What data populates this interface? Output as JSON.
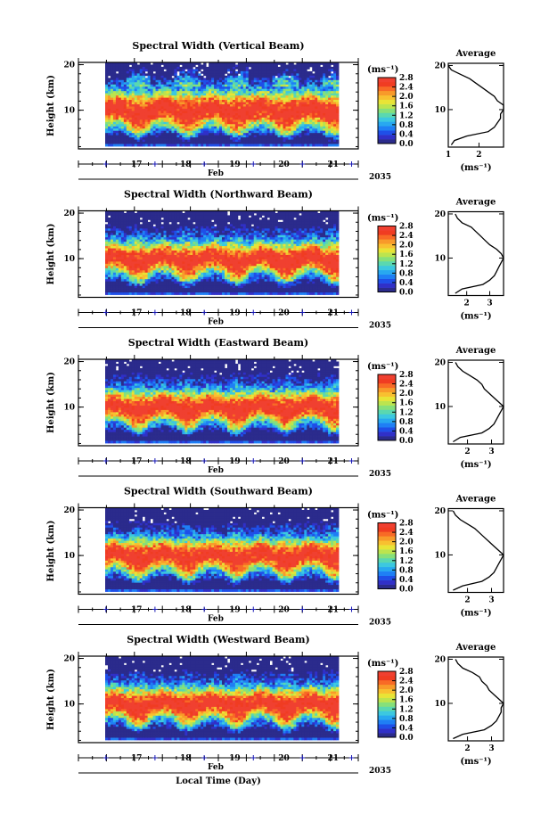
{
  "figure": {
    "shared_xlabel": "Local Time (Day)",
    "month_label": "Feb",
    "year_label": "2035",
    "colorbar_unit": "(ms⁻¹)",
    "avg_title": "Average",
    "avg_xlabel": "(ms⁻¹)",
    "ylabel": "Height (km)"
  },
  "colors": {
    "scale": [
      "#2b2b8c",
      "#3030c8",
      "#1f4fe8",
      "#1f7ff5",
      "#28a8f0",
      "#3cc8e0",
      "#5ad8b0",
      "#86e07a",
      "#bce44e",
      "#e8e436",
      "#f8c030",
      "#f89a2a",
      "#f86a26",
      "#f03c22",
      "#f04030"
    ],
    "frame": "#000000",
    "dates_tick": "#1a1ab4"
  },
  "chart_data": [
    {
      "type": "heatmap",
      "title": "Spectral Width (Vertical Beam)",
      "xlabel": "Local Time (Day)",
      "ylabel": "Height (km)",
      "x_ticks": [
        "17",
        "18",
        "19",
        "20",
        "21"
      ],
      "x_sub": "Feb",
      "x_year": "2035",
      "y_ticks": [
        "10",
        "20"
      ],
      "ylim": [
        1.5,
        20.5
      ],
      "xlim": [
        16.5,
        21.35
      ],
      "colorbar": {
        "label": "(ms⁻¹)",
        "ticks": [
          "0.0",
          "0.4",
          "0.8",
          "1.2",
          "1.6",
          "2.0",
          "2.4",
          "2.8"
        ],
        "range": [
          0.0,
          2.8
        ]
      },
      "average": {
        "title": "Average",
        "xlabel": "(ms⁻¹)",
        "x_ticks": [
          "1",
          "2"
        ],
        "xlim": [
          1.0,
          2.8
        ],
        "heights": [
          2,
          3,
          4,
          5,
          6,
          7,
          8,
          9,
          10,
          11,
          12,
          13,
          14,
          15,
          16,
          17,
          18,
          19,
          20
        ],
        "values": [
          1.1,
          1.2,
          1.6,
          2.3,
          2.5,
          2.6,
          2.7,
          2.7,
          2.8,
          2.8,
          2.6,
          2.5,
          2.3,
          2.1,
          1.9,
          1.7,
          1.4,
          1.1,
          1.0
        ]
      }
    },
    {
      "type": "heatmap",
      "title": "Spectral Width (Northward Beam)",
      "xlabel": "Local Time (Day)",
      "ylabel": "Height (km)",
      "x_ticks": [
        "17",
        "18",
        "19",
        "20",
        "21"
      ],
      "x_sub": "Feb",
      "x_year": "2035",
      "y_ticks": [
        "10",
        "20"
      ],
      "ylim": [
        1.5,
        20.5
      ],
      "xlim": [
        16.5,
        21.35
      ],
      "colorbar": {
        "label": "(ms⁻¹)",
        "ticks": [
          "0.0",
          "0.4",
          "0.8",
          "1.2",
          "1.6",
          "2.0",
          "2.4",
          "2.8"
        ],
        "range": [
          0.0,
          2.8
        ]
      },
      "average": {
        "title": "Average",
        "xlabel": "(ms⁻¹)",
        "x_ticks": [
          "2",
          "3"
        ],
        "xlim": [
          1.2,
          3.6
        ],
        "heights": [
          2,
          3,
          4,
          5,
          6,
          7,
          8,
          9,
          10,
          11,
          12,
          13,
          14,
          15,
          16,
          17,
          18,
          19,
          20
        ],
        "values": [
          1.5,
          1.8,
          2.7,
          3.0,
          3.2,
          3.3,
          3.4,
          3.5,
          3.6,
          3.5,
          3.3,
          3.0,
          2.8,
          2.6,
          2.4,
          2.2,
          1.8,
          1.6,
          1.5
        ]
      }
    },
    {
      "type": "heatmap",
      "title": "Spectral Width (Eastward Beam)",
      "xlabel": "Local Time (Day)",
      "ylabel": "Height (km)",
      "x_ticks": [
        "17",
        "18",
        "19",
        "20",
        "21"
      ],
      "x_sub": "Feb",
      "x_year": "2035",
      "y_ticks": [
        "10",
        "20"
      ],
      "ylim": [
        1.5,
        20.5
      ],
      "xlim": [
        16.5,
        21.35
      ],
      "colorbar": {
        "label": "(ms⁻¹)",
        "ticks": [
          "0.0",
          "0.4",
          "0.8",
          "1.2",
          "1.6",
          "2.0",
          "2.4",
          "2.8"
        ],
        "range": [
          0.0,
          2.8
        ]
      },
      "average": {
        "title": "Average",
        "xlabel": "(ms⁻¹)",
        "x_ticks": [
          "2",
          "3"
        ],
        "xlim": [
          1.2,
          3.5
        ],
        "heights": [
          2,
          3,
          4,
          5,
          6,
          7,
          8,
          9,
          10,
          11,
          12,
          13,
          14,
          15,
          16,
          17,
          18,
          19,
          20
        ],
        "values": [
          1.4,
          1.7,
          2.6,
          2.9,
          3.1,
          3.2,
          3.3,
          3.4,
          3.5,
          3.3,
          3.1,
          2.9,
          2.7,
          2.6,
          2.4,
          2.1,
          1.8,
          1.6,
          1.5
        ]
      }
    },
    {
      "type": "heatmap",
      "title": "Spectral Width (Southward Beam)",
      "xlabel": "Local Time (Day)",
      "ylabel": "Height (km)",
      "x_ticks": [
        "17",
        "18",
        "19",
        "20",
        "21"
      ],
      "x_sub": "Feb",
      "x_year": "2035",
      "y_ticks": [
        "10",
        "20"
      ],
      "ylim": [
        1.5,
        20.5
      ],
      "xlim": [
        16.5,
        21.35
      ],
      "colorbar": {
        "label": "(ms⁻¹)",
        "ticks": [
          "0.0",
          "0.4",
          "0.8",
          "1.2",
          "1.6",
          "2.0",
          "2.4",
          "2.8"
        ],
        "range": [
          0.0,
          2.8
        ]
      },
      "average": {
        "title": "Average",
        "xlabel": "(ms⁻¹)",
        "x_ticks": [
          "2",
          "3"
        ],
        "xlim": [
          1.2,
          3.5
        ],
        "heights": [
          2,
          3,
          4,
          5,
          6,
          7,
          8,
          9,
          10,
          11,
          12,
          13,
          14,
          15,
          16,
          17,
          18,
          19,
          20
        ],
        "values": [
          1.4,
          1.8,
          2.6,
          2.9,
          3.1,
          3.2,
          3.3,
          3.4,
          3.5,
          3.3,
          3.1,
          2.9,
          2.7,
          2.5,
          2.3,
          2.0,
          1.7,
          1.5,
          1.4
        ]
      }
    },
    {
      "type": "heatmap",
      "title": "Spectral Width (Westward Beam)",
      "xlabel": "Local Time (Day)",
      "ylabel": "Height (km)",
      "x_ticks": [
        "17",
        "18",
        "19",
        "20",
        "21"
      ],
      "x_sub": "Feb",
      "x_year": "2035",
      "y_ticks": [
        "10",
        "20"
      ],
      "ylim": [
        1.5,
        20.5
      ],
      "xlim": [
        16.5,
        21.35
      ],
      "colorbar": {
        "label": "(ms⁻¹)",
        "ticks": [
          "0.0",
          "0.4",
          "0.8",
          "1.2",
          "1.6",
          "2.0",
          "2.4",
          "2.8"
        ],
        "range": [
          0.0,
          2.8
        ]
      },
      "average": {
        "title": "Average",
        "xlabel": "(ms⁻¹)",
        "x_ticks": [
          "2",
          "3"
        ],
        "xlim": [
          1.2,
          3.5
        ],
        "heights": [
          2,
          3,
          4,
          5,
          6,
          7,
          8,
          9,
          10,
          11,
          12,
          13,
          14,
          15,
          16,
          17,
          18,
          19,
          20
        ],
        "values": [
          1.4,
          1.8,
          2.7,
          3.0,
          3.2,
          3.3,
          3.4,
          3.4,
          3.5,
          3.3,
          3.1,
          2.9,
          2.8,
          2.6,
          2.5,
          2.2,
          1.8,
          1.6,
          1.5
        ]
      }
    }
  ]
}
